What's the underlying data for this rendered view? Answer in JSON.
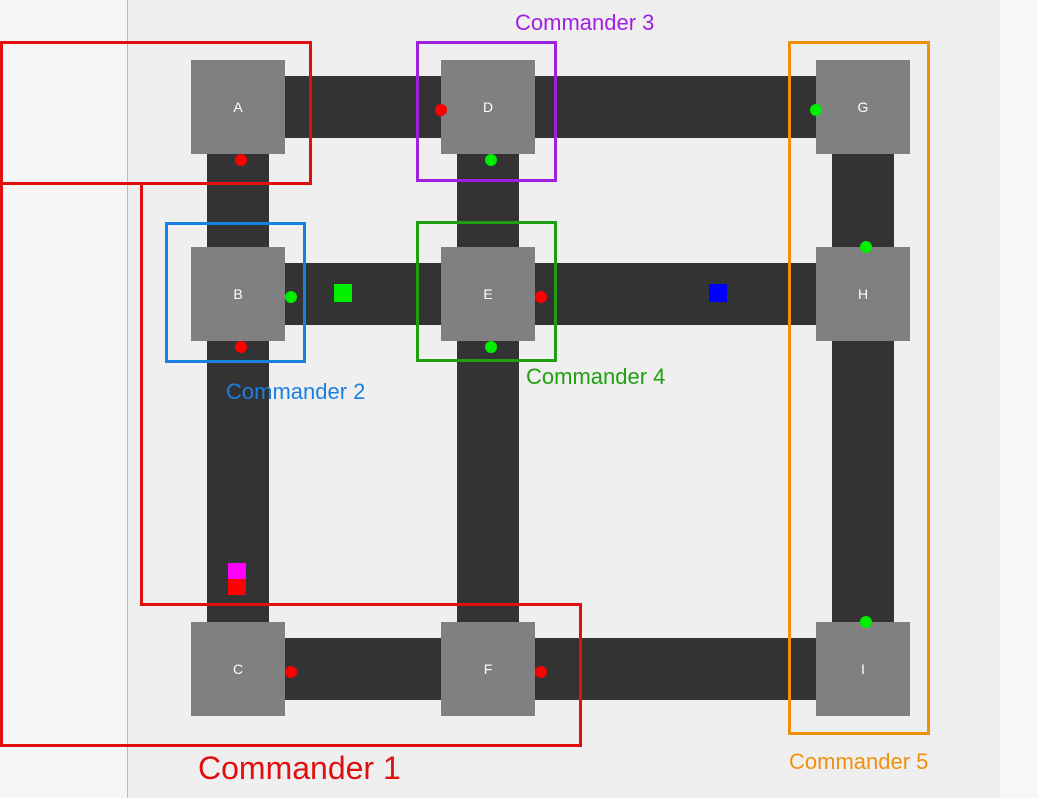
{
  "colors": {
    "road": "#333333",
    "node": "#808080",
    "light_red": "#ff0000",
    "light_green": "#00ee00",
    "vehicle_green": "#00ee00",
    "vehicle_blue": "#0000ff",
    "vehicle_magenta": "#ff00ff",
    "vehicle_red": "#ff0000",
    "commander_1": "#e01010",
    "commander_2": "#1a80e0",
    "commander_3": "#a020e0",
    "commander_4": "#20a010",
    "commander_5": "#f0900c"
  },
  "nodes": [
    {
      "id": "A"
    },
    {
      "id": "B"
    },
    {
      "id": "C"
    },
    {
      "id": "D"
    },
    {
      "id": "E"
    },
    {
      "id": "F"
    },
    {
      "id": "G"
    },
    {
      "id": "H"
    },
    {
      "id": "I"
    }
  ],
  "traffic_lights": [
    {
      "node": "A",
      "side": "south",
      "state": "red"
    },
    {
      "node": "B",
      "side": "east",
      "state": "green"
    },
    {
      "node": "B",
      "side": "south",
      "state": "red"
    },
    {
      "node": "C",
      "side": "east",
      "state": "red"
    },
    {
      "node": "D",
      "side": "west",
      "state": "red"
    },
    {
      "node": "D",
      "side": "south",
      "state": "green"
    },
    {
      "node": "E",
      "side": "east",
      "state": "red"
    },
    {
      "node": "E",
      "side": "south",
      "state": "green"
    },
    {
      "node": "F",
      "side": "east",
      "state": "red"
    },
    {
      "node": "G",
      "side": "west",
      "state": "green"
    },
    {
      "node": "H",
      "side": "north",
      "state": "green"
    },
    {
      "node": "I",
      "side": "north",
      "state": "green"
    }
  ],
  "vehicles": [
    {
      "color": "green",
      "road": "B-E"
    },
    {
      "color": "blue",
      "road": "E-H"
    },
    {
      "color": "magenta",
      "road": "B-C"
    },
    {
      "color": "red",
      "road": "B-C"
    }
  ],
  "commanders": [
    {
      "id": "commander-1",
      "label": "Commander 1",
      "nodes": [
        "A",
        "B",
        "C",
        "F"
      ]
    },
    {
      "id": "commander-2",
      "label": "Commander 2",
      "nodes": [
        "B"
      ]
    },
    {
      "id": "commander-3",
      "label": "Commander 3",
      "nodes": [
        "D"
      ]
    },
    {
      "id": "commander-4",
      "label": "Commander 4",
      "nodes": [
        "E"
      ]
    },
    {
      "id": "commander-5",
      "label": "Commander 5",
      "nodes": [
        "G",
        "H",
        "I"
      ]
    }
  ]
}
